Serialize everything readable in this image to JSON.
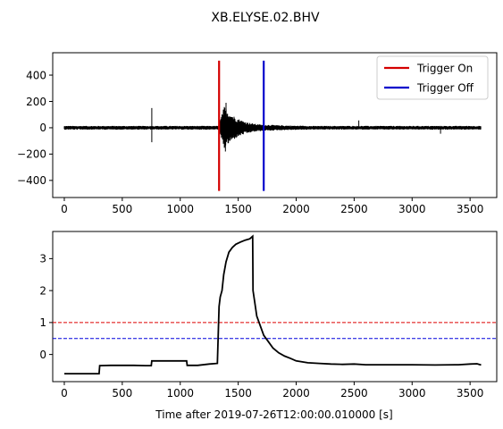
{
  "figure": {
    "suptitle": "XB.ELYSE.02.BHV"
  },
  "chart_data": [
    {
      "type": "line",
      "panel": "top",
      "title": "",
      "xlabel": "",
      "ylabel": "",
      "xlim": [
        -100,
        3730
      ],
      "ylim": [
        -530,
        570
      ],
      "xticks": [
        0,
        500,
        1000,
        1500,
        2000,
        2500,
        3000,
        3500
      ],
      "yticks": [
        -400,
        -200,
        0,
        200,
        400
      ],
      "grid": false,
      "legend_position": "top-right",
      "waveform": {
        "color": "#000000",
        "t_start": 0,
        "t_end": 3595,
        "background_amplitude": 14,
        "notable_peaks": [
          {
            "x": 755,
            "y": 150
          },
          {
            "x": 755,
            "y": -110
          },
          {
            "x": 1395,
            "y": 190
          },
          {
            "x": 1390,
            "y": -180
          },
          {
            "x": 2540,
            "y": 55
          },
          {
            "x": 3245,
            "y": -45
          }
        ]
      },
      "series": [
        {
          "name": "Trigger On",
          "color": "#d40000",
          "x": 1335,
          "y": [
            -480,
            510
          ]
        },
        {
          "name": "Trigger Off",
          "color": "#0000cc",
          "x": 1720,
          "y": [
            -480,
            510
          ]
        }
      ]
    },
    {
      "type": "line",
      "panel": "bottom",
      "title": "",
      "xlabel": "Time after 2019-07-26T12:00:00.010000 [s]",
      "ylabel": "",
      "xlim": [
        -100,
        3730
      ],
      "ylim": [
        -0.85,
        3.85
      ],
      "xticks": [
        0,
        500,
        1000,
        1500,
        2000,
        2500,
        3000,
        3500
      ],
      "yticks": [
        0,
        1,
        2,
        3
      ],
      "grid": false,
      "thresholds": [
        {
          "value": 1.0,
          "color": "#dd0000",
          "style": "dashed"
        },
        {
          "value": 0.5,
          "color": "#0000dd",
          "style": "dashed"
        }
      ],
      "series": [
        {
          "color": "#000000",
          "x": [
            0,
            100,
            200,
            300,
            305,
            400,
            500,
            600,
            700,
            750,
            755,
            850,
            950,
            1055,
            1060,
            1150,
            1250,
            1320,
            1335,
            1345,
            1360,
            1375,
            1395,
            1420,
            1450,
            1480,
            1520,
            1560,
            1600,
            1625,
            1628,
            1640,
            1660,
            1690,
            1720,
            1760,
            1800,
            1850,
            1900,
            1950,
            2000,
            2100,
            2200,
            2300,
            2400,
            2500,
            2600,
            2800,
            3000,
            3200,
            3400,
            3500,
            3560,
            3595
          ],
          "y": [
            -0.6,
            -0.6,
            -0.6,
            -0.6,
            -0.35,
            -0.34,
            -0.34,
            -0.34,
            -0.35,
            -0.35,
            -0.2,
            -0.2,
            -0.2,
            -0.2,
            -0.34,
            -0.34,
            -0.3,
            -0.28,
            1.5,
            1.8,
            2.0,
            2.5,
            2.9,
            3.2,
            3.35,
            3.45,
            3.52,
            3.58,
            3.62,
            3.7,
            2.0,
            1.7,
            1.2,
            0.9,
            0.6,
            0.4,
            0.2,
            0.05,
            -0.05,
            -0.12,
            -0.2,
            -0.26,
            -0.28,
            -0.3,
            -0.31,
            -0.3,
            -0.32,
            -0.32,
            -0.32,
            -0.33,
            -0.32,
            -0.3,
            -0.29,
            -0.33
          ]
        }
      ]
    }
  ]
}
